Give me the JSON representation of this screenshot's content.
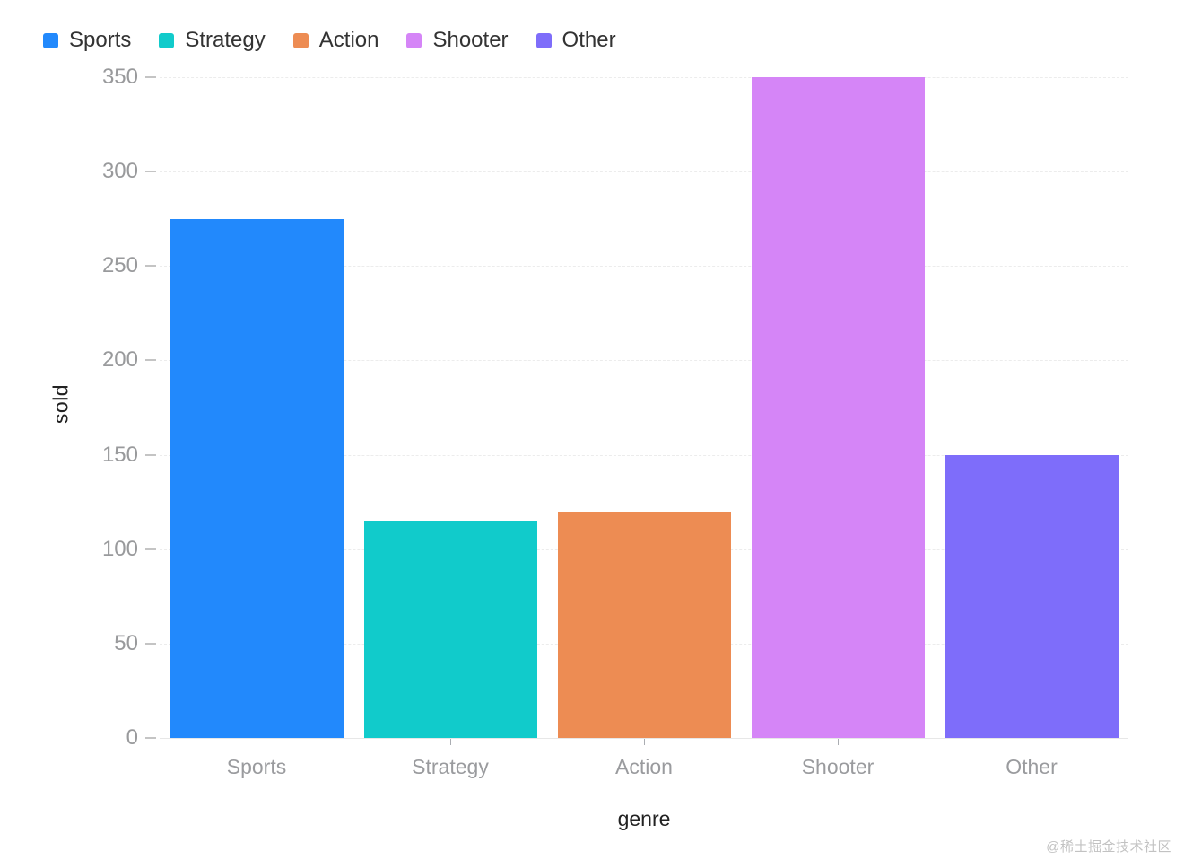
{
  "chart_data": {
    "type": "bar",
    "categories": [
      "Sports",
      "Strategy",
      "Action",
      "Shooter",
      "Other"
    ],
    "values": [
      275,
      115,
      120,
      350,
      150
    ],
    "colors": [
      "#2289fc",
      "#11cbcb",
      "#ed8c53",
      "#d585f7",
      "#7e6dfa"
    ],
    "title": "",
    "xlabel": "genre",
    "ylabel": "sold",
    "ylim": [
      0,
      350
    ],
    "yticks": [
      0,
      50,
      100,
      150,
      200,
      250,
      300,
      350
    ],
    "grid": "horizontal-dashed",
    "legend_position": "top-left",
    "legend": [
      {
        "label": "Sports",
        "color": "#2289fc"
      },
      {
        "label": "Strategy",
        "color": "#11cbcb"
      },
      {
        "label": "Action",
        "color": "#ed8c53"
      },
      {
        "label": "Shooter",
        "color": "#d585f7"
      },
      {
        "label": "Other",
        "color": "#7e6dfa"
      }
    ]
  },
  "watermark": {
    "text": "@稀土掘金技术社区"
  },
  "colors": {
    "background": "#ffffff",
    "gridline": "#ececec",
    "axis_line": "#e7e7e7",
    "tick_label": "#999a9c",
    "axis_title": "#222222",
    "legend_text": "#333333",
    "watermark": "#c2c2c2"
  }
}
